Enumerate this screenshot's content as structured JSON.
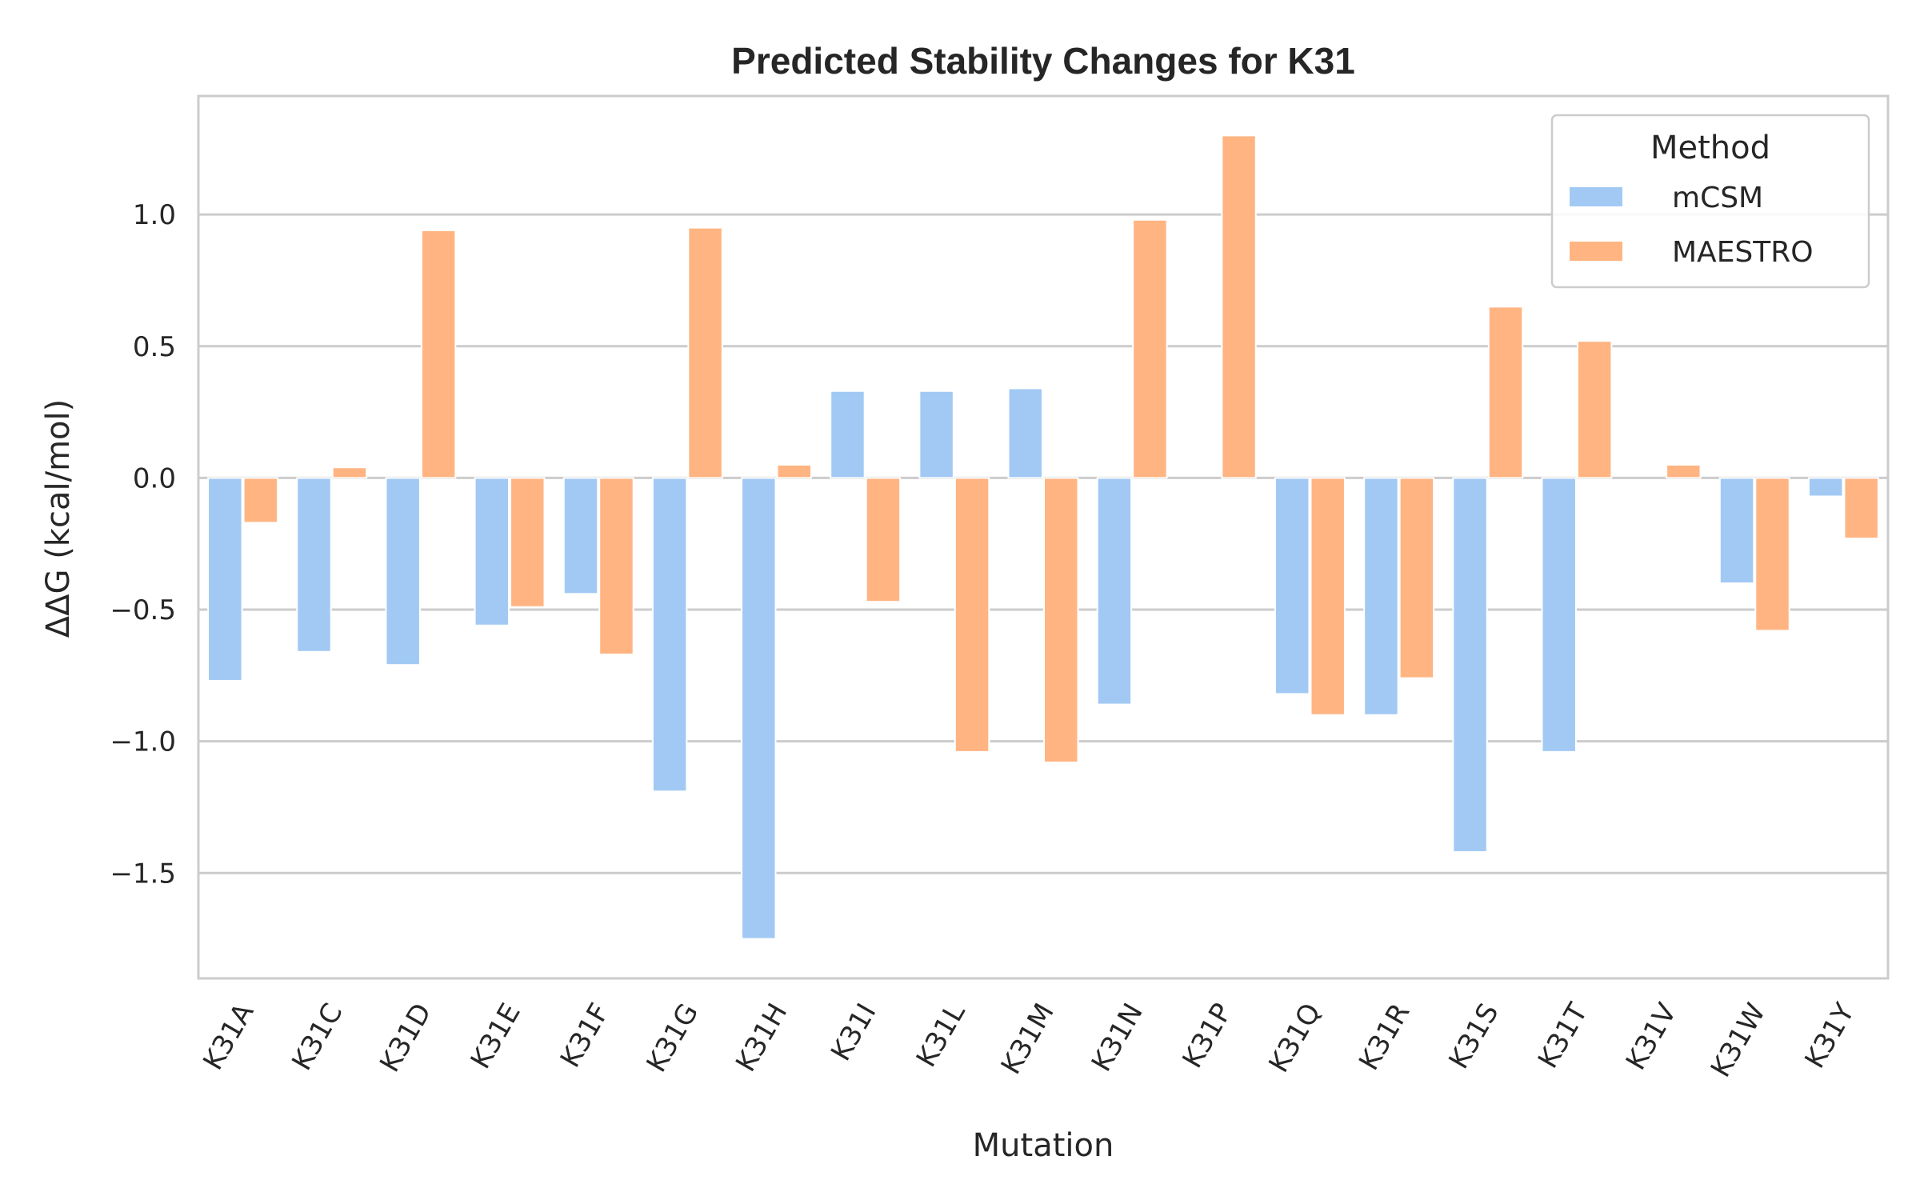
{
  "chart_data": {
    "type": "bar",
    "title": "Predicted Stability Changes for K31",
    "xlabel": "Mutation",
    "ylabel": "ΔΔG (kcal/mol)",
    "ylim": [
      -1.9,
      1.45
    ],
    "yticks": [
      {
        "value": 1.0,
        "label": "1.0"
      },
      {
        "value": 0.5,
        "label": "0.5"
      },
      {
        "value": 0.0,
        "label": "0.0"
      },
      {
        "value": -0.5,
        "label": "−0.5"
      },
      {
        "value": -1.0,
        "label": "−1.0"
      },
      {
        "value": -1.5,
        "label": "−1.5"
      }
    ],
    "grid": true,
    "legend": {
      "title": "Method",
      "placement": "top-right"
    },
    "categories": [
      "K31A",
      "K31C",
      "K31D",
      "K31E",
      "K31F",
      "K31G",
      "K31H",
      "K31I",
      "K31L",
      "K31M",
      "K31N",
      "K31P",
      "K31Q",
      "K31R",
      "K31S",
      "K31T",
      "K31V",
      "K31W",
      "K31Y"
    ],
    "series": [
      {
        "name": "mCSM",
        "color": "#a1c9f4",
        "values": [
          -0.77,
          -0.66,
          -0.71,
          -0.56,
          -0.44,
          -1.19,
          -1.75,
          0.33,
          0.33,
          0.34,
          -0.86,
          0.0,
          -0.82,
          -0.9,
          -1.42,
          -1.04,
          0.0,
          -0.4,
          -0.07
        ]
      },
      {
        "name": "MAESTRO",
        "color": "#ffb482",
        "values": [
          -0.17,
          0.04,
          0.94,
          -0.49,
          -0.67,
          0.95,
          0.05,
          -0.47,
          -1.04,
          -1.08,
          0.98,
          1.3,
          -0.9,
          -0.76,
          0.65,
          0.52,
          0.05,
          -0.58,
          -0.23
        ]
      }
    ]
  }
}
